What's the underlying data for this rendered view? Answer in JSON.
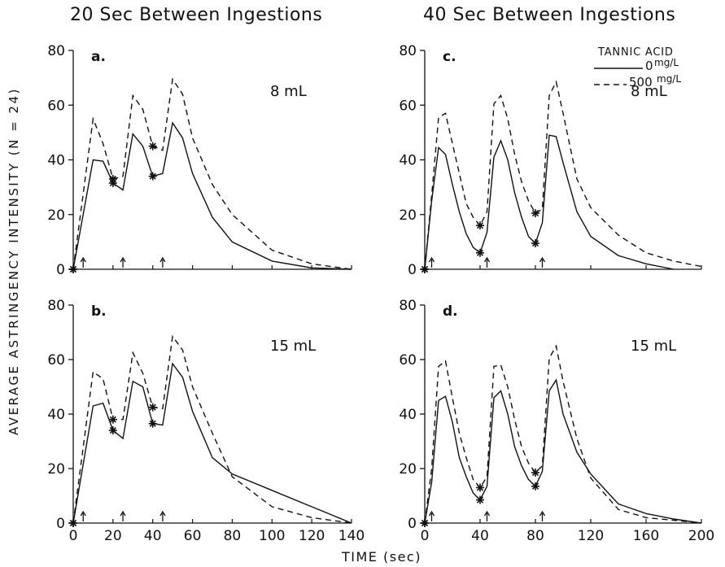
{
  "columns": [
    "20 Sec Between Ingestions",
    "40 Sec Between Ingestions"
  ],
  "ylabel": "AVERAGE ASTRINGENCY INTENSITY (N = 24)",
  "xlabel": "TIME (sec)",
  "legend": {
    "title": "TANNIC ACID",
    "entries": [
      {
        "label": "0",
        "unit": "mg/L",
        "style": "solid"
      },
      {
        "label": "500",
        "unit": "mg/L",
        "style": "dashed"
      }
    ]
  },
  "chart_data": [
    {
      "type": "line",
      "panel": "a.",
      "volume": "8 mL",
      "xlim": [
        0,
        140
      ],
      "ylim": [
        0,
        80
      ],
      "yticks": [
        0,
        20,
        40,
        60,
        80
      ],
      "xticks": [
        0,
        20,
        40,
        60,
        80,
        100,
        120,
        140
      ],
      "ingestion_arrows": [
        5,
        25,
        45
      ],
      "series": [
        {
          "name": "0",
          "style": "solid",
          "x": [
            0,
            10,
            15,
            20,
            25,
            30,
            35,
            40,
            45,
            50,
            55,
            60,
            70,
            80,
            100,
            120,
            140
          ],
          "y": [
            0,
            40,
            39.5,
            31.5,
            29,
            49.5,
            45,
            34,
            35,
            53.5,
            48,
            35,
            19,
            10,
            3,
            0.5,
            0
          ],
          "stars_x": [
            0,
            20,
            40
          ]
        },
        {
          "name": "500",
          "style": "dashed",
          "x": [
            0,
            10,
            15,
            20,
            25,
            30,
            35,
            40,
            45,
            50,
            55,
            60,
            70,
            80,
            100,
            120,
            140
          ],
          "y": [
            0,
            55,
            46,
            33,
            34,
            63.5,
            58.5,
            45,
            43.5,
            69.5,
            64,
            48,
            31,
            20,
            7,
            2,
            0
          ],
          "stars_x": [
            0,
            20,
            40
          ]
        }
      ]
    },
    {
      "type": "line",
      "panel": "b.",
      "volume": "15 mL",
      "xlim": [
        0,
        140
      ],
      "ylim": [
        0,
        80
      ],
      "yticks": [
        0,
        20,
        40,
        60,
        80
      ],
      "xticks": [
        0,
        20,
        40,
        60,
        80,
        100,
        120,
        140
      ],
      "xtick_labels": [
        "0",
        "20",
        "40",
        "60",
        "80",
        "100",
        "120",
        "140"
      ],
      "ingestion_arrows": [
        5,
        25,
        45
      ],
      "series": [
        {
          "name": "0",
          "style": "solid",
          "x": [
            0,
            10,
            15,
            20,
            25,
            30,
            35,
            40,
            45,
            50,
            55,
            60,
            70,
            80,
            100,
            120,
            140
          ],
          "y": [
            0,
            43,
            44,
            34,
            31,
            52,
            50,
            36.5,
            36,
            58.5,
            53.5,
            41,
            24,
            18,
            12,
            6,
            0
          ],
          "stars_x": [
            0,
            20,
            40
          ]
        },
        {
          "name": "500",
          "style": "dashed",
          "x": [
            0,
            10,
            15,
            20,
            25,
            30,
            35,
            40,
            45,
            50,
            55,
            60,
            70,
            80,
            100,
            120,
            140
          ],
          "y": [
            0,
            55.5,
            53,
            38,
            38,
            62.5,
            55,
            42.5,
            42,
            68.5,
            63.5,
            50,
            33,
            17,
            6,
            2,
            0
          ],
          "stars_x": [
            0,
            20,
            40
          ]
        }
      ]
    },
    {
      "type": "line",
      "panel": "c.",
      "volume": "8 mL",
      "xlim": [
        0,
        200
      ],
      "ylim": [
        0,
        80
      ],
      "yticks": [
        0,
        20,
        40,
        60,
        80
      ],
      "xticks": [
        0,
        40,
        80,
        120,
        160,
        200
      ],
      "ingestion_arrows": [
        5,
        45,
        85
      ],
      "series": [
        {
          "name": "0",
          "style": "solid",
          "x": [
            0,
            5,
            10,
            15,
            20,
            25,
            30,
            35,
            40,
            45,
            50,
            55,
            60,
            65,
            70,
            75,
            80,
            85,
            90,
            95,
            100,
            110,
            120,
            140,
            160,
            180
          ],
          "y": [
            0,
            25,
            44.5,
            42,
            31,
            21,
            13,
            8,
            6,
            13.5,
            41,
            47,
            40,
            28,
            19,
            12,
            9.5,
            17,
            49,
            48.5,
            39,
            21,
            12,
            5,
            2,
            0
          ],
          "stars_x": [
            0,
            40,
            80
          ]
        },
        {
          "name": "500",
          "style": "dashed",
          "x": [
            0,
            5,
            10,
            15,
            20,
            25,
            30,
            35,
            40,
            45,
            50,
            55,
            60,
            65,
            70,
            75,
            80,
            85,
            90,
            95,
            100,
            110,
            120,
            140,
            160,
            180,
            200
          ],
          "y": [
            0,
            27,
            55.5,
            57,
            46,
            35,
            24,
            19,
            16,
            21,
            60.5,
            63.5,
            55,
            42,
            32,
            25,
            20.5,
            22,
            63.5,
            68.5,
            57,
            33,
            22.5,
            12.5,
            6,
            3,
            1
          ],
          "stars_x": [
            0,
            40,
            80
          ]
        }
      ]
    },
    {
      "type": "line",
      "panel": "d.",
      "volume": "15 mL",
      "xlim": [
        0,
        200
      ],
      "ylim": [
        0,
        80
      ],
      "yticks": [
        0,
        20,
        40,
        60,
        80
      ],
      "xticks": [
        0,
        40,
        80,
        120,
        160,
        200
      ],
      "xtick_labels": [
        "0",
        "40",
        "80",
        "120",
        "160",
        "200"
      ],
      "ingestion_arrows": [
        5,
        45,
        85
      ],
      "series": [
        {
          "name": "0",
          "style": "solid",
          "x": [
            0,
            5,
            10,
            15,
            20,
            25,
            30,
            35,
            40,
            45,
            50,
            55,
            60,
            65,
            70,
            75,
            80,
            85,
            90,
            95,
            100,
            110,
            120,
            140,
            160,
            180,
            200
          ],
          "y": [
            0,
            15,
            45,
            46.5,
            37,
            24,
            17,
            11,
            8.5,
            13.5,
            46,
            48.5,
            40,
            28,
            21,
            16,
            13.5,
            19,
            48.5,
            52.5,
            40,
            26,
            18,
            7,
            3.5,
            1.5,
            0
          ],
          "stars_x": [
            0,
            40,
            80
          ]
        },
        {
          "name": "500",
          "style": "dashed",
          "x": [
            0,
            5,
            10,
            15,
            20,
            25,
            30,
            35,
            40,
            45,
            50,
            55,
            60,
            65,
            70,
            75,
            80,
            85,
            90,
            95,
            100,
            110,
            120,
            140,
            160,
            180,
            200
          ],
          "y": [
            0,
            20,
            57.5,
            59.5,
            46,
            33,
            24,
            16,
            13,
            17,
            57.5,
            58,
            50,
            38,
            28,
            22,
            18.5,
            21,
            60.5,
            65,
            52,
            31,
            16.5,
            5,
            2,
            1,
            0
          ],
          "stars_x": [
            0,
            40,
            80
          ]
        }
      ]
    }
  ]
}
